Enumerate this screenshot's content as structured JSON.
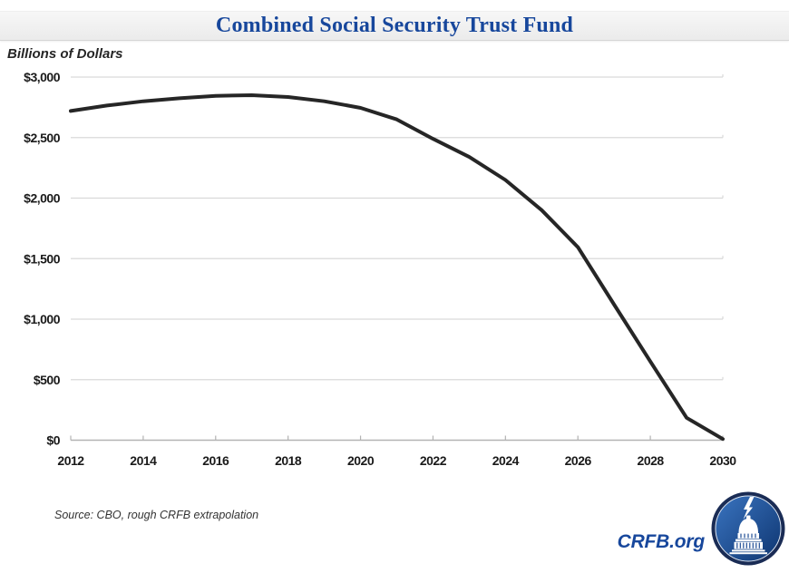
{
  "header": {
    "title": "Combined Social Security Trust Fund"
  },
  "chart_data": {
    "type": "line",
    "title": "Combined Social Security Trust Fund",
    "ylabel": "Billions of Dollars",
    "xlabel": "",
    "x": [
      2012,
      2013,
      2014,
      2015,
      2016,
      2017,
      2018,
      2019,
      2020,
      2021,
      2022,
      2023,
      2024,
      2025,
      2026,
      2027,
      2028,
      2029,
      2030
    ],
    "values": [
      2720,
      2765,
      2800,
      2825,
      2845,
      2850,
      2835,
      2800,
      2745,
      2650,
      2490,
      2340,
      2150,
      1900,
      1595,
      1120,
      650,
      185,
      10
    ],
    "xlim": [
      2012,
      2030
    ],
    "ylim": [
      0,
      3000
    ],
    "y_ticks": [
      0,
      500,
      1000,
      1500,
      2000,
      2500,
      3000
    ],
    "y_tick_labels": [
      "$0",
      "$500",
      "$1,000",
      "$1,500",
      "$2,000",
      "$2,500",
      "$3,000"
    ],
    "x_ticks": [
      2012,
      2014,
      2016,
      2018,
      2020,
      2022,
      2024,
      2026,
      2028,
      2030
    ],
    "x_tick_labels": [
      "2012",
      "2014",
      "2016",
      "2018",
      "2020",
      "2022",
      "2024",
      "2026",
      "2028",
      "2030"
    ],
    "grid": true,
    "legend_position": "none",
    "line_color": "#262626"
  },
  "footer": {
    "source_note": "Source: CBO, rough CRFB extrapolation",
    "brand": "CRFB.org"
  },
  "colors": {
    "title_blue": "#17479c",
    "brand_blue": "#17479c",
    "line": "#262626",
    "gridline": "#d9d9d9",
    "axis": "#b3b3b3",
    "tick_text": "#1a1a1a",
    "logo_ring": "#1a2c55",
    "logo_fill_light": "#3a74c0",
    "logo_fill_dark": "#0e3570"
  }
}
